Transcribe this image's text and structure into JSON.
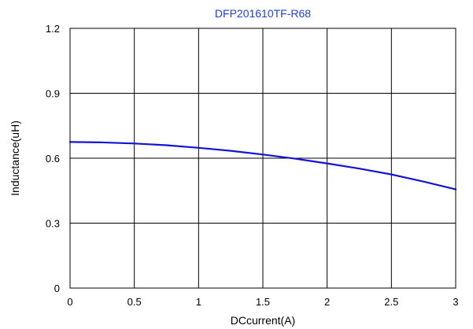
{
  "chart_data": {
    "type": "line",
    "title": "DFP201610TF-R68",
    "xlabel": "DCcurrent(A)",
    "ylabel": "Inductance(uH)",
    "xlim": [
      0,
      3
    ],
    "ylim": [
      0,
      1.2
    ],
    "x_ticks": [
      0,
      0.5,
      1,
      1.5,
      2,
      2.5,
      3
    ],
    "x_tick_labels": [
      "0",
      "0.5",
      "1",
      "1.5",
      "2",
      "2.5",
      "3"
    ],
    "y_ticks": [
      0,
      0.3,
      0.6,
      0.9,
      1.2
    ],
    "y_tick_labels": [
      "0",
      "0.3",
      "0.6",
      "0.9",
      "1.2"
    ],
    "grid": true,
    "legend": "none",
    "colors": {
      "series": "#1414d2",
      "title": "#1f3fe0",
      "grid": "#000000"
    },
    "series": [
      {
        "x": [
          0,
          0.25,
          0.5,
          0.75,
          1.0,
          1.25,
          1.5,
          1.75,
          2.0,
          2.25,
          2.5,
          2.75,
          3.0
        ],
        "y": [
          0.675,
          0.673,
          0.668,
          0.66,
          0.648,
          0.634,
          0.617,
          0.598,
          0.576,
          0.552,
          0.525,
          0.492,
          0.456
        ]
      }
    ]
  }
}
